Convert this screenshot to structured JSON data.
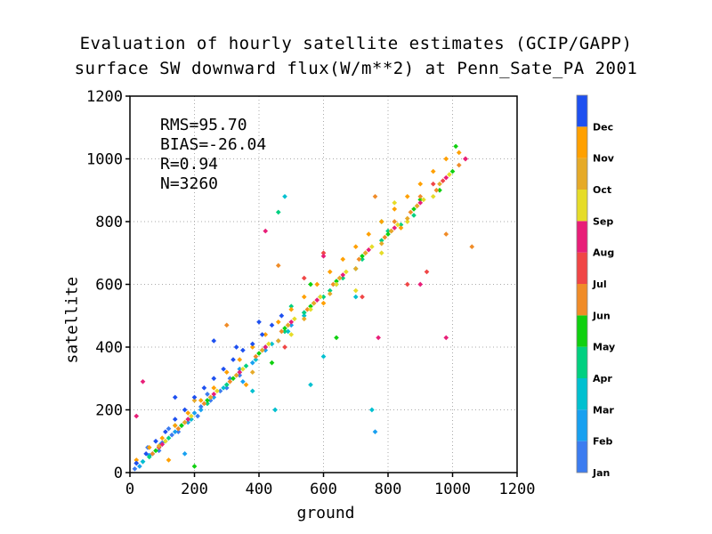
{
  "chart_data": {
    "type": "scatter",
    "title": "Evaluation of hourly satellite estimates (GCIP/GAPP)",
    "subtitle": "surface SW downward flux(W/m**2) at Penn_Sate_PA 2001",
    "xlabel": "ground",
    "ylabel": "satellite",
    "xlim": [
      0,
      1200
    ],
    "ylim": [
      0,
      1200
    ],
    "xticks": [
      "0",
      "200",
      "400",
      "600",
      "800",
      "1000",
      "1200"
    ],
    "yticks": [
      "0",
      "200",
      "400",
      "600",
      "800",
      "1000",
      "1200"
    ],
    "grid": true,
    "stats": [
      "RMS=95.70",
      "BIAS=-26.04",
      "R=0.94",
      "N=3260"
    ],
    "legend_position": "right",
    "series": [
      {
        "name": "Jan",
        "color": "#3c7cf0",
        "points": [
          [
            15,
            12
          ],
          [
            40,
            35
          ],
          [
            70,
            60
          ],
          [
            100,
            95
          ],
          [
            130,
            120
          ],
          [
            160,
            150
          ],
          [
            190,
            170
          ],
          [
            220,
            210
          ],
          [
            250,
            230
          ],
          [
            280,
            260
          ],
          [
            310,
            300
          ],
          [
            340,
            310
          ],
          [
            20,
            30
          ],
          [
            55,
            80
          ],
          [
            90,
            70
          ],
          [
            120,
            140
          ],
          [
            150,
            130
          ],
          [
            210,
            180
          ],
          [
            240,
            250
          ],
          [
            300,
            270
          ]
        ]
      },
      {
        "name": "Feb",
        "color": "#18a0f0",
        "points": [
          [
            30,
            20
          ],
          [
            60,
            55
          ],
          [
            95,
            90
          ],
          [
            140,
            130
          ],
          [
            180,
            160
          ],
          [
            220,
            200
          ],
          [
            260,
            240
          ],
          [
            300,
            280
          ],
          [
            340,
            330
          ],
          [
            380,
            350
          ],
          [
            420,
            390
          ],
          [
            460,
            420
          ],
          [
            500,
            470
          ],
          [
            540,
            510
          ],
          [
            110,
            100
          ],
          [
            200,
            190
          ],
          [
            760,
            130
          ],
          [
            170,
            60
          ],
          [
            350,
            290
          ],
          [
            480,
            450
          ]
        ]
      },
      {
        "name": "Mar",
        "color": "#00c0d0",
        "points": [
          [
            40,
            35
          ],
          [
            90,
            80
          ],
          [
            140,
            150
          ],
          [
            190,
            170
          ],
          [
            240,
            230
          ],
          [
            290,
            270
          ],
          [
            340,
            320
          ],
          [
            390,
            360
          ],
          [
            440,
            410
          ],
          [
            490,
            450
          ],
          [
            540,
            500
          ],
          [
            590,
            560
          ],
          [
            640,
            600
          ],
          [
            700,
            560
          ],
          [
            480,
            880
          ],
          [
            600,
            370
          ],
          [
            560,
            280
          ],
          [
            450,
            200
          ],
          [
            750,
            200
          ],
          [
            380,
            260
          ]
        ]
      },
      {
        "name": "Apr",
        "color": "#00d080",
        "points": [
          [
            60,
            50
          ],
          [
            120,
            110
          ],
          [
            180,
            170
          ],
          [
            240,
            220
          ],
          [
            300,
            280
          ],
          [
            360,
            340
          ],
          [
            420,
            400
          ],
          [
            480,
            450
          ],
          [
            540,
            510
          ],
          [
            600,
            560
          ],
          [
            660,
            620
          ],
          [
            720,
            680
          ],
          [
            780,
            740
          ],
          [
            840,
            790
          ],
          [
            880,
            820
          ],
          [
            500,
            530
          ],
          [
            620,
            580
          ],
          [
            700,
            650
          ],
          [
            460,
            830
          ],
          [
            800,
            770
          ]
        ]
      },
      {
        "name": "May",
        "color": "#10d010",
        "points": [
          [
            80,
            70
          ],
          [
            160,
            150
          ],
          [
            240,
            230
          ],
          [
            320,
            300
          ],
          [
            400,
            380
          ],
          [
            480,
            460
          ],
          [
            560,
            530
          ],
          [
            640,
            610
          ],
          [
            720,
            690
          ],
          [
            800,
            760
          ],
          [
            880,
            840
          ],
          [
            960,
            900
          ],
          [
            1000,
            960
          ],
          [
            1010,
            1040
          ],
          [
            640,
            430
          ],
          [
            900,
            870
          ],
          [
            560,
            600
          ],
          [
            780,
            800
          ],
          [
            200,
            20
          ],
          [
            440,
            350
          ]
        ]
      },
      {
        "name": "Jun",
        "color": "#f08c28",
        "points": [
          [
            70,
            60
          ],
          [
            150,
            140
          ],
          [
            230,
            220
          ],
          [
            310,
            290
          ],
          [
            390,
            370
          ],
          [
            470,
            450
          ],
          [
            550,
            520
          ],
          [
            630,
            600
          ],
          [
            710,
            680
          ],
          [
            790,
            750
          ],
          [
            870,
            830
          ],
          [
            950,
            900
          ],
          [
            1020,
            980
          ],
          [
            1060,
            720
          ],
          [
            980,
            760
          ],
          [
            460,
            660
          ],
          [
            760,
            880
          ],
          [
            300,
            470
          ],
          [
            820,
            800
          ],
          [
            900,
            880
          ]
        ]
      },
      {
        "name": "Jul",
        "color": "#f04646",
        "points": [
          [
            90,
            80
          ],
          [
            170,
            160
          ],
          [
            250,
            240
          ],
          [
            330,
            310
          ],
          [
            410,
            390
          ],
          [
            490,
            470
          ],
          [
            570,
            540
          ],
          [
            650,
            620
          ],
          [
            730,
            700
          ],
          [
            810,
            770
          ],
          [
            890,
            850
          ],
          [
            970,
            930
          ],
          [
            1040,
            1000
          ],
          [
            860,
            600
          ],
          [
            920,
            640
          ],
          [
            480,
            400
          ],
          [
            540,
            620
          ],
          [
            720,
            560
          ],
          [
            600,
            700
          ],
          [
            940,
            920
          ]
        ]
      },
      {
        "name": "Aug",
        "color": "#e81e78",
        "points": [
          [
            100,
            90
          ],
          [
            180,
            170
          ],
          [
            260,
            250
          ],
          [
            340,
            320
          ],
          [
            420,
            400
          ],
          [
            500,
            480
          ],
          [
            580,
            550
          ],
          [
            660,
            630
          ],
          [
            740,
            710
          ],
          [
            820,
            780
          ],
          [
            900,
            860
          ],
          [
            980,
            940
          ],
          [
            1040,
            1000
          ],
          [
            20,
            180
          ],
          [
            40,
            290
          ],
          [
            980,
            430
          ],
          [
            770,
            430
          ],
          [
            900,
            600
          ],
          [
            420,
            770
          ],
          [
            600,
            690
          ]
        ]
      },
      {
        "name": "Sep",
        "color": "#e6dc28",
        "points": [
          [
            110,
            100
          ],
          [
            190,
            180
          ],
          [
            270,
            260
          ],
          [
            350,
            330
          ],
          [
            430,
            410
          ],
          [
            510,
            490
          ],
          [
            590,
            560
          ],
          [
            670,
            640
          ],
          [
            750,
            720
          ],
          [
            830,
            790
          ],
          [
            910,
            870
          ],
          [
            990,
            950
          ],
          [
            700,
            580
          ],
          [
            780,
            700
          ],
          [
            860,
            800
          ],
          [
            940,
            880
          ],
          [
            500,
            440
          ],
          [
            640,
            600
          ],
          [
            820,
            860
          ],
          [
            560,
            520
          ]
        ]
      },
      {
        "name": "Oct",
        "color": "#e6aa28",
        "points": [
          [
            90,
            85
          ],
          [
            170,
            160
          ],
          [
            250,
            240
          ],
          [
            330,
            310
          ],
          [
            410,
            390
          ],
          [
            490,
            470
          ],
          [
            570,
            540
          ],
          [
            650,
            620
          ],
          [
            730,
            700
          ],
          [
            810,
            770
          ],
          [
            890,
            850
          ],
          [
            960,
            920
          ],
          [
            380,
            320
          ],
          [
            460,
            420
          ],
          [
            540,
            490
          ],
          [
            620,
            570
          ],
          [
            700,
            650
          ],
          [
            780,
            730
          ],
          [
            860,
            810
          ],
          [
            200,
            230
          ]
        ]
      },
      {
        "name": "Nov",
        "color": "#ffa000",
        "points": [
          [
            20,
            40
          ],
          [
            60,
            80
          ],
          [
            100,
            110
          ],
          [
            140,
            150
          ],
          [
            180,
            190
          ],
          [
            220,
            230
          ],
          [
            260,
            270
          ],
          [
            300,
            320
          ],
          [
            340,
            360
          ],
          [
            380,
            400
          ],
          [
            420,
            440
          ],
          [
            460,
            480
          ],
          [
            500,
            520
          ],
          [
            540,
            560
          ],
          [
            580,
            600
          ],
          [
            620,
            640
          ],
          [
            660,
            680
          ],
          [
            700,
            720
          ],
          [
            740,
            760
          ],
          [
            780,
            800
          ],
          [
            820,
            840
          ],
          [
            860,
            880
          ],
          [
            900,
            920
          ],
          [
            940,
            960
          ],
          [
            980,
            1000
          ],
          [
            1020,
            1020
          ],
          [
            120,
            40
          ],
          [
            360,
            280
          ],
          [
            600,
            540
          ],
          [
            840,
            780
          ]
        ]
      },
      {
        "name": "Dec",
        "color": "#1e50f0",
        "points": [
          [
            20,
            30
          ],
          [
            50,
            60
          ],
          [
            80,
            100
          ],
          [
            110,
            130
          ],
          [
            140,
            170
          ],
          [
            170,
            200
          ],
          [
            200,
            240
          ],
          [
            230,
            270
          ],
          [
            260,
            300
          ],
          [
            290,
            330
          ],
          [
            320,
            360
          ],
          [
            350,
            390
          ],
          [
            380,
            410
          ],
          [
            410,
            440
          ],
          [
            440,
            470
          ],
          [
            470,
            500
          ],
          [
            140,
            240
          ],
          [
            260,
            420
          ],
          [
            330,
            400
          ],
          [
            400,
            480
          ]
        ]
      }
    ]
  }
}
